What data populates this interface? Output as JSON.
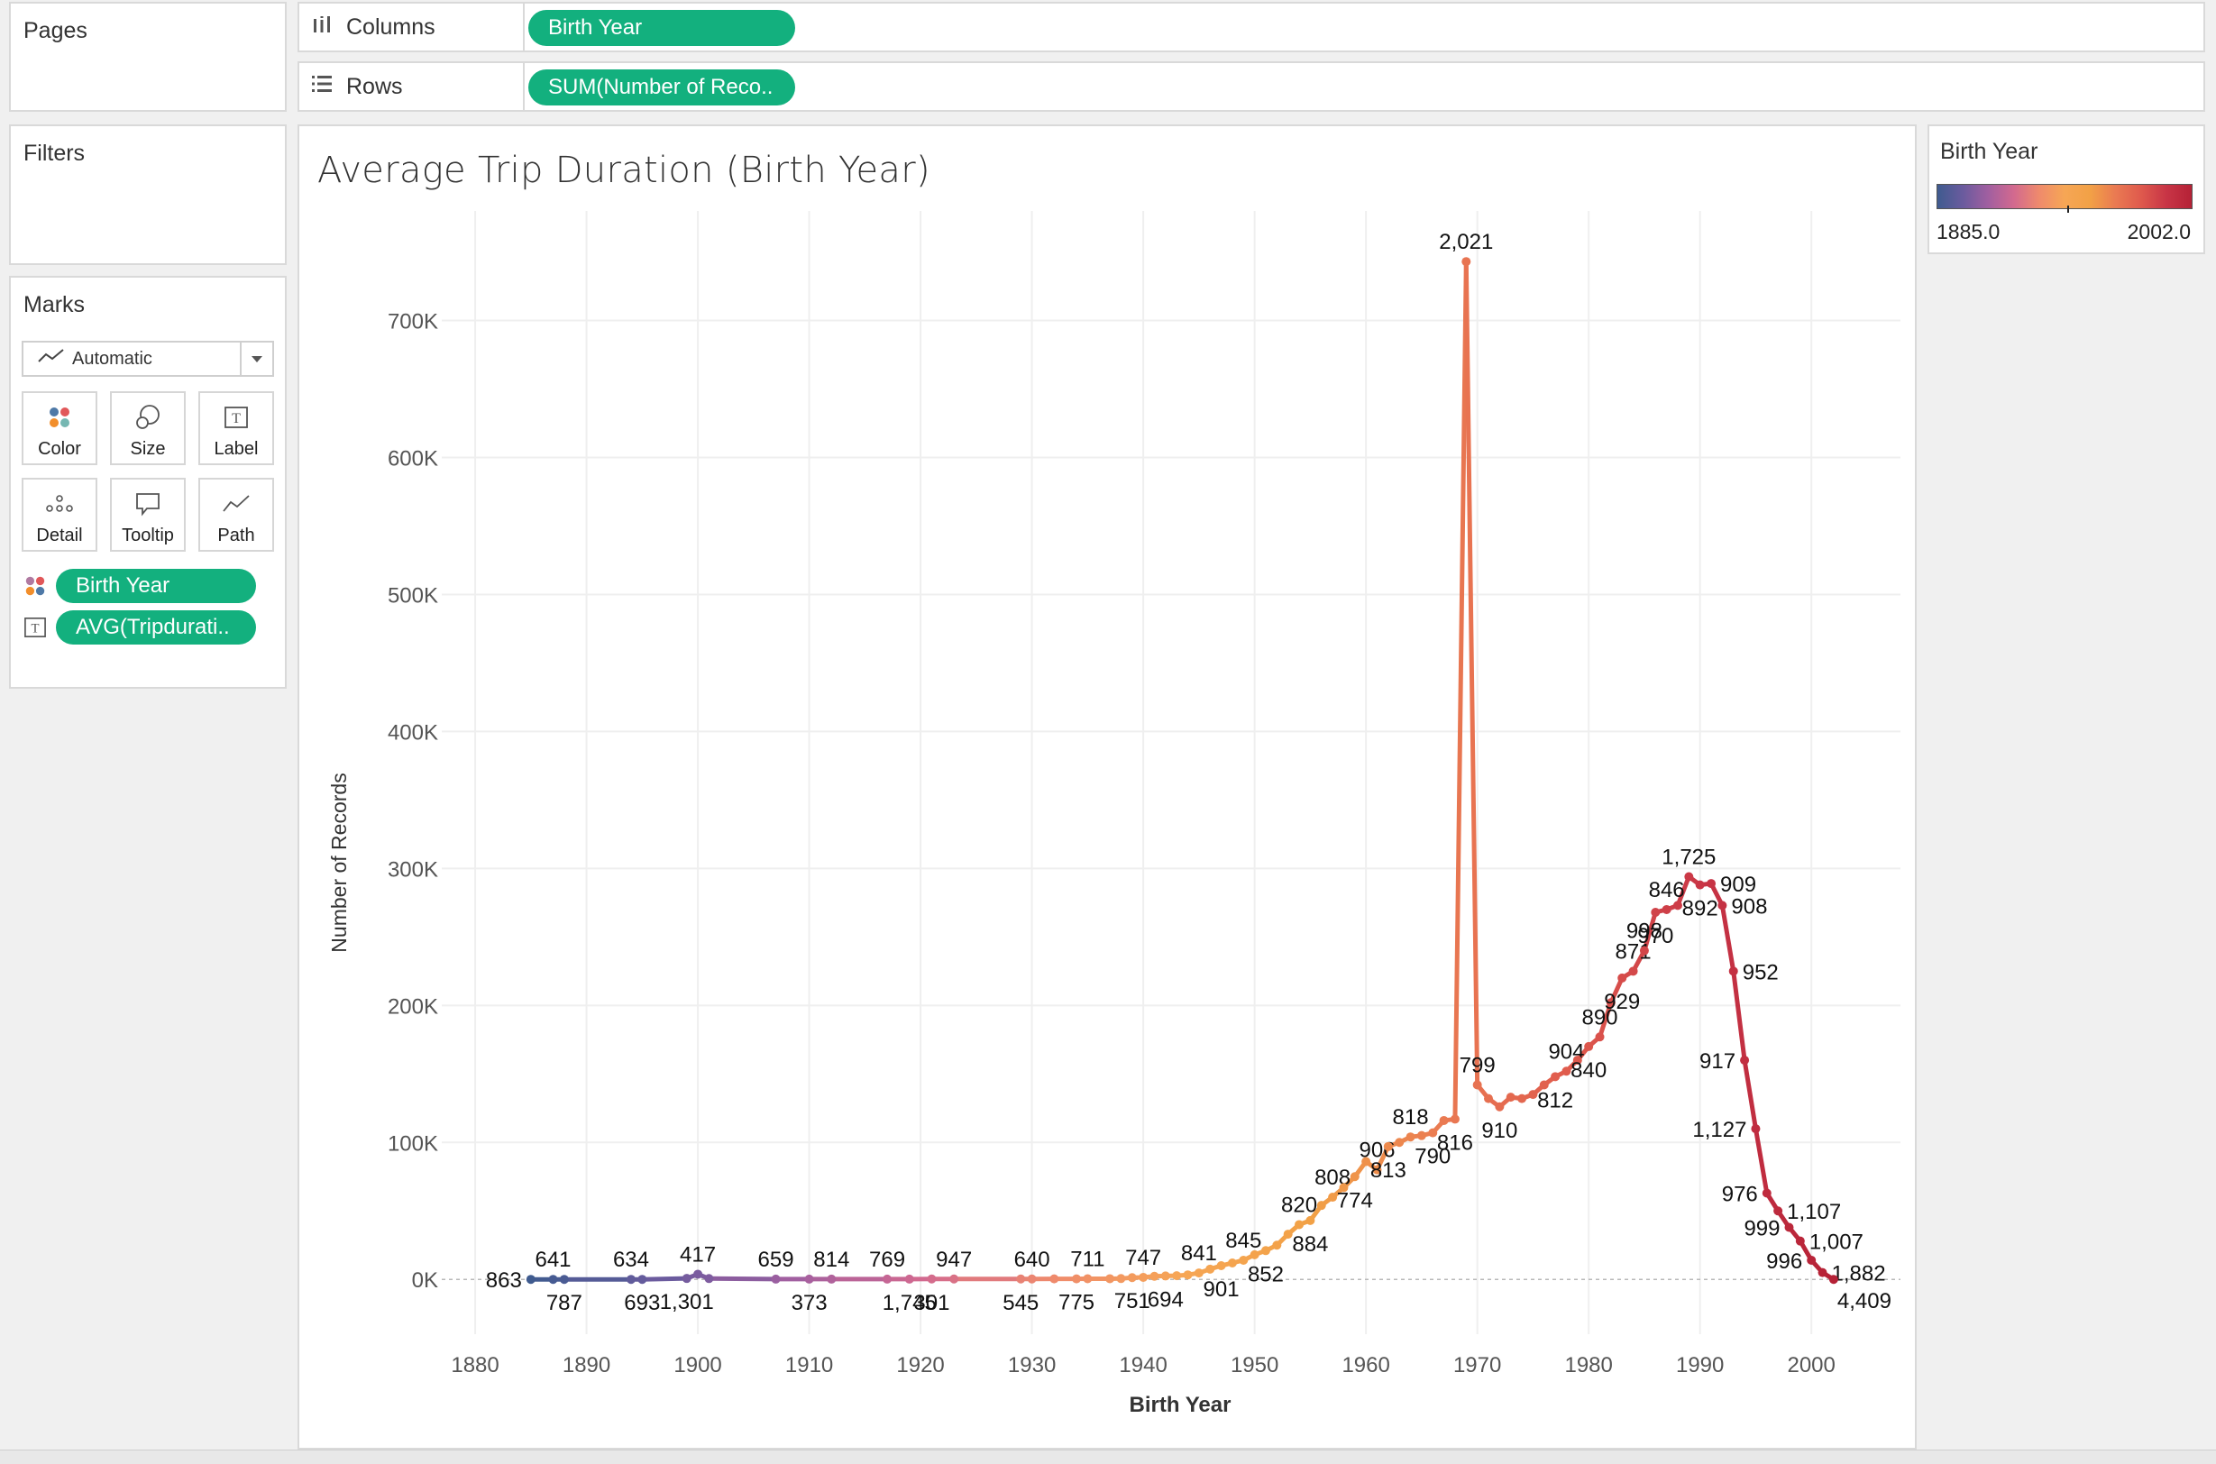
{
  "pages_panel": {
    "title": "Pages"
  },
  "filters_panel": {
    "title": "Filters"
  },
  "columns_shelf": {
    "label": "Columns",
    "pill": "Birth Year"
  },
  "rows_shelf": {
    "label": "Rows",
    "pill": "SUM(Number of Reco.."
  },
  "marks_panel": {
    "title": "Marks",
    "mark_type": "Automatic",
    "buttons": [
      "Color",
      "Size",
      "Label",
      "Detail",
      "Tooltip",
      "Path"
    ],
    "fields": [
      {
        "icon": "color-dots-icon",
        "label": "Birth Year"
      },
      {
        "icon": "text-label-icon",
        "label": "AVG(Tripdurati.."
      }
    ]
  },
  "legend": {
    "title": "Birth Year",
    "min": "1885.0",
    "max": "2002.0",
    "colors": [
      "#3f5b8f",
      "#6a5b9e",
      "#a15fa0",
      "#d2698f",
      "#ef8a6c",
      "#f6a655",
      "#f2a146",
      "#ea7a52",
      "#df5a4d",
      "#c83546",
      "#b52136"
    ]
  },
  "chart_data": {
    "type": "line",
    "title": "Average Trip Duration (Birth Year)",
    "xlabel": "Birth Year",
    "ylabel": "Number of Records",
    "xlim": [
      1877,
      2008
    ],
    "ylim": [
      -40000,
      780000
    ],
    "x_ticks": [
      1880,
      1890,
      1900,
      1910,
      1920,
      1930,
      1940,
      1950,
      1960,
      1970,
      1980,
      1990,
      2000
    ],
    "x_tick_labels": [
      "1880",
      "1890",
      "1900",
      "1910",
      "1920",
      "1930",
      "1940",
      "1950",
      "1960",
      "1970",
      "1980",
      "1990",
      "2000"
    ],
    "y_ticks": [
      0,
      100000,
      200000,
      300000,
      400000,
      500000,
      600000,
      700000
    ],
    "y_tick_labels": [
      "0K",
      "100K",
      "200K",
      "300K",
      "400K",
      "500K",
      "600K",
      "700K"
    ],
    "grid": true,
    "color_by": "Birth Year",
    "label_field": "AVG(Tripduration)",
    "points": [
      {
        "x": 1885,
        "y": 0,
        "label": "863",
        "pos": "left"
      },
      {
        "x": 1887,
        "y": 0,
        "label": "641",
        "pos": "above"
      },
      {
        "x": 1888,
        "y": 0,
        "label": "787",
        "pos": "below"
      },
      {
        "x": 1894,
        "y": 0,
        "label": "634",
        "pos": "above"
      },
      {
        "x": 1895,
        "y": 0,
        "label": "693",
        "pos": "below"
      },
      {
        "x": 1899,
        "y": 700,
        "label": "1,301",
        "pos": "below"
      },
      {
        "x": 1900,
        "y": 3800,
        "label": "417",
        "pos": "above"
      },
      {
        "x": 1901,
        "y": 600,
        "label": "",
        "pos": "none"
      },
      {
        "x": 1907,
        "y": 200,
        "label": "659",
        "pos": "above"
      },
      {
        "x": 1910,
        "y": 200,
        "label": "373",
        "pos": "below"
      },
      {
        "x": 1912,
        "y": 200,
        "label": "814",
        "pos": "above"
      },
      {
        "x": 1917,
        "y": 200,
        "label": "769",
        "pos": "above"
      },
      {
        "x": 1919,
        "y": 200,
        "label": "1,745",
        "pos": "below"
      },
      {
        "x": 1921,
        "y": 300,
        "label": "301",
        "pos": "below"
      },
      {
        "x": 1923,
        "y": 300,
        "label": "947",
        "pos": "above"
      },
      {
        "x": 1929,
        "y": 300,
        "label": "545",
        "pos": "below"
      },
      {
        "x": 1930,
        "y": 300,
        "label": "640",
        "pos": "above"
      },
      {
        "x": 1932,
        "y": 400,
        "label": "",
        "pos": "none"
      },
      {
        "x": 1934,
        "y": 400,
        "label": "775",
        "pos": "below"
      },
      {
        "x": 1935,
        "y": 500,
        "label": "711",
        "pos": "above"
      },
      {
        "x": 1937,
        "y": 500,
        "label": "",
        "pos": "none"
      },
      {
        "x": 1938,
        "y": 600,
        "label": "",
        "pos": "none"
      },
      {
        "x": 1939,
        "y": 1300,
        "label": "751",
        "pos": "below"
      },
      {
        "x": 1940,
        "y": 1500,
        "label": "747",
        "pos": "above"
      },
      {
        "x": 1941,
        "y": 2300,
        "label": "",
        "pos": "none"
      },
      {
        "x": 1942,
        "y": 2500,
        "label": "694",
        "pos": "below"
      },
      {
        "x": 1943,
        "y": 2700,
        "label": "",
        "pos": "none"
      },
      {
        "x": 1944,
        "y": 3300,
        "label": "",
        "pos": "none"
      },
      {
        "x": 1945,
        "y": 4700,
        "label": "841",
        "pos": "above"
      },
      {
        "x": 1946,
        "y": 7500,
        "label": "",
        "pos": "none"
      },
      {
        "x": 1947,
        "y": 10000,
        "label": "901",
        "pos": "below"
      },
      {
        "x": 1948,
        "y": 12000,
        "label": "",
        "pos": "none"
      },
      {
        "x": 1949,
        "y": 14000,
        "label": "845",
        "pos": "above"
      },
      {
        "x": 1950,
        "y": 18000,
        "label": "",
        "pos": "none"
      },
      {
        "x": 1951,
        "y": 21000,
        "label": "852",
        "pos": "below"
      },
      {
        "x": 1952,
        "y": 25000,
        "label": "",
        "pos": "none"
      },
      {
        "x": 1953,
        "y": 33000,
        "label": "",
        "pos": "none"
      },
      {
        "x": 1954,
        "y": 40000,
        "label": "820",
        "pos": "above"
      },
      {
        "x": 1955,
        "y": 43000,
        "label": "884",
        "pos": "below"
      },
      {
        "x": 1956,
        "y": 54000,
        "label": "",
        "pos": "none"
      },
      {
        "x": 1957,
        "y": 60000,
        "label": "808",
        "pos": "above"
      },
      {
        "x": 1958,
        "y": 67000,
        "label": "",
        "pos": "none"
      },
      {
        "x": 1959,
        "y": 75000,
        "label": "774",
        "pos": "below"
      },
      {
        "x": 1960,
        "y": 86000,
        "label": "",
        "pos": "none"
      },
      {
        "x": 1961,
        "y": 80000,
        "label": "906",
        "pos": "above"
      },
      {
        "x": 1962,
        "y": 97000,
        "label": "813",
        "pos": "below"
      },
      {
        "x": 1963,
        "y": 100000,
        "label": "",
        "pos": "none"
      },
      {
        "x": 1964,
        "y": 104000,
        "label": "818",
        "pos": "above"
      },
      {
        "x": 1965,
        "y": 105000,
        "label": "",
        "pos": "none"
      },
      {
        "x": 1966,
        "y": 107000,
        "label": "790",
        "pos": "below"
      },
      {
        "x": 1967,
        "y": 116000,
        "label": "",
        "pos": "none"
      },
      {
        "x": 1968,
        "y": 117000,
        "label": "816",
        "pos": "below"
      },
      {
        "x": 1969,
        "y": 743000,
        "label": "2,021",
        "pos": "above"
      },
      {
        "x": 1970,
        "y": 142000,
        "label": "799",
        "pos": "above"
      },
      {
        "x": 1971,
        "y": 132000,
        "label": "",
        "pos": "none"
      },
      {
        "x": 1972,
        "y": 126000,
        "label": "910",
        "pos": "below"
      },
      {
        "x": 1973,
        "y": 133000,
        "label": "",
        "pos": "none"
      },
      {
        "x": 1974,
        "y": 132000,
        "label": "",
        "pos": "none"
      },
      {
        "x": 1975,
        "y": 135000,
        "label": "",
        "pos": "none"
      },
      {
        "x": 1976,
        "y": 142000,
        "label": "",
        "pos": "none"
      },
      {
        "x": 1977,
        "y": 148000,
        "label": "812",
        "pos": "below"
      },
      {
        "x": 1978,
        "y": 152000,
        "label": "904",
        "pos": "above"
      },
      {
        "x": 1979,
        "y": 160000,
        "label": "",
        "pos": "none"
      },
      {
        "x": 1980,
        "y": 170000,
        "label": "840",
        "pos": "below"
      },
      {
        "x": 1981,
        "y": 177000,
        "label": "890",
        "pos": "above"
      },
      {
        "x": 1982,
        "y": 202000,
        "label": "",
        "pos": "none"
      },
      {
        "x": 1983,
        "y": 220000,
        "label": "929",
        "pos": "below"
      },
      {
        "x": 1984,
        "y": 225000,
        "label": "871",
        "pos": "above"
      },
      {
        "x": 1985,
        "y": 240000,
        "label": "998",
        "pos": "above"
      },
      {
        "x": 1986,
        "y": 268000,
        "label": "970",
        "pos": "below"
      },
      {
        "x": 1987,
        "y": 270000,
        "label": "846",
        "pos": "above"
      },
      {
        "x": 1988,
        "y": 273000,
        "label": "",
        "pos": "none"
      },
      {
        "x": 1989,
        "y": 294000,
        "label": "1,725",
        "pos": "above"
      },
      {
        "x": 1990,
        "y": 288000,
        "label": "892",
        "pos": "below"
      },
      {
        "x": 1991,
        "y": 289000,
        "label": "909",
        "pos": "right"
      },
      {
        "x": 1992,
        "y": 273000,
        "label": "908",
        "pos": "right"
      },
      {
        "x": 1993,
        "y": 225000,
        "label": "952",
        "pos": "right"
      },
      {
        "x": 1994,
        "y": 160000,
        "label": "917",
        "pos": "left"
      },
      {
        "x": 1995,
        "y": 110000,
        "label": "1,127",
        "pos": "left"
      },
      {
        "x": 1996,
        "y": 63000,
        "label": "976",
        "pos": "left"
      },
      {
        "x": 1997,
        "y": 50000,
        "label": "1,107",
        "pos": "right"
      },
      {
        "x": 1998,
        "y": 38000,
        "label": "999",
        "pos": "left"
      },
      {
        "x": 1999,
        "y": 28000,
        "label": "1,007",
        "pos": "right"
      },
      {
        "x": 2000,
        "y": 14000,
        "label": "996",
        "pos": "left"
      },
      {
        "x": 2001,
        "y": 5000,
        "label": "1,882",
        "pos": "right"
      },
      {
        "x": 2002,
        "y": 0,
        "label": "4,409",
        "pos": "belowright"
      }
    ]
  }
}
